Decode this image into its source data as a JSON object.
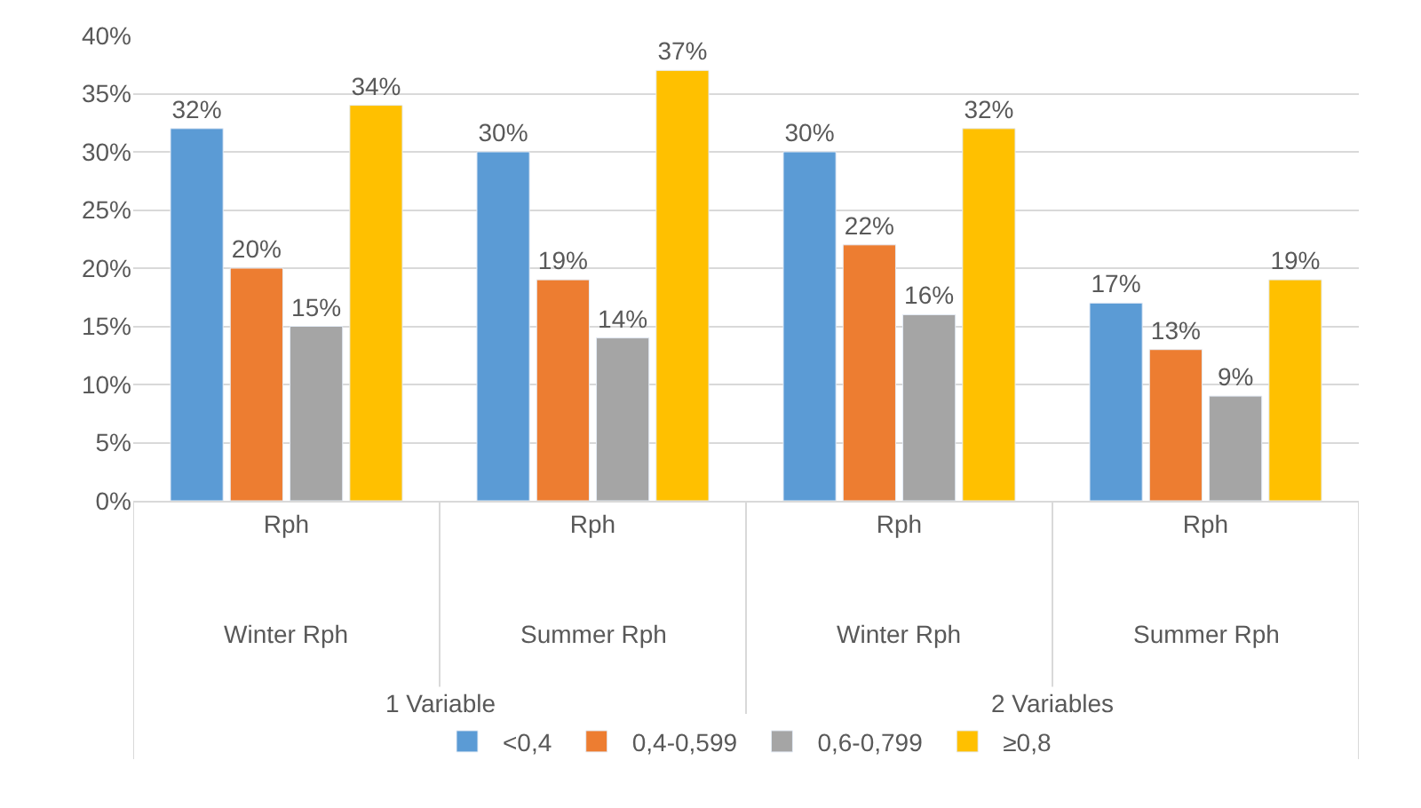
{
  "chart_data": {
    "type": "bar",
    "categories": [
      "Rph",
      "Rph",
      "Rph",
      "Rph"
    ],
    "series": [
      {
        "name": "<0,4",
        "color": "#5b9bd5",
        "values": [
          32,
          30,
          30,
          17
        ],
        "value_labels": [
          "32%",
          "30%",
          "30%",
          "17%"
        ]
      },
      {
        "name": "0,4-0,599",
        "color": "#ed7d31",
        "values": [
          20,
          19,
          22,
          13
        ],
        "value_labels": [
          "20%",
          "19%",
          "22%",
          "13%"
        ]
      },
      {
        "name": "0,6-0,799",
        "color": "#a5a5a5",
        "values": [
          15,
          14,
          16,
          9
        ],
        "value_labels": [
          "15%",
          "14%",
          "16%",
          "9%"
        ]
      },
      {
        "name": "≥0,8",
        "color": "#ffc000",
        "values": [
          34,
          37,
          32,
          19
        ],
        "value_labels": [
          "34%",
          "37%",
          "32%",
          "19%"
        ]
      }
    ],
    "annotations": [
      "Winter Rph",
      "Summer Rph",
      "Winter Rph",
      "Summer Rph",
      "1 Variable",
      "2 Variables"
    ],
    "ylim": [
      0,
      40
    ],
    "yticks": [
      {
        "value": 0,
        "label": "0%"
      },
      {
        "value": 5,
        "label": "5%"
      },
      {
        "value": 10,
        "label": "10%"
      },
      {
        "value": 15,
        "label": "15%"
      },
      {
        "value": 20,
        "label": "20%"
      },
      {
        "value": 25,
        "label": "25%"
      },
      {
        "value": 30,
        "label": "30%"
      },
      {
        "value": 35,
        "label": "35%"
      },
      {
        "value": 40,
        "label": "40%"
      }
    ],
    "grid": "y",
    "legend": "bottom"
  }
}
